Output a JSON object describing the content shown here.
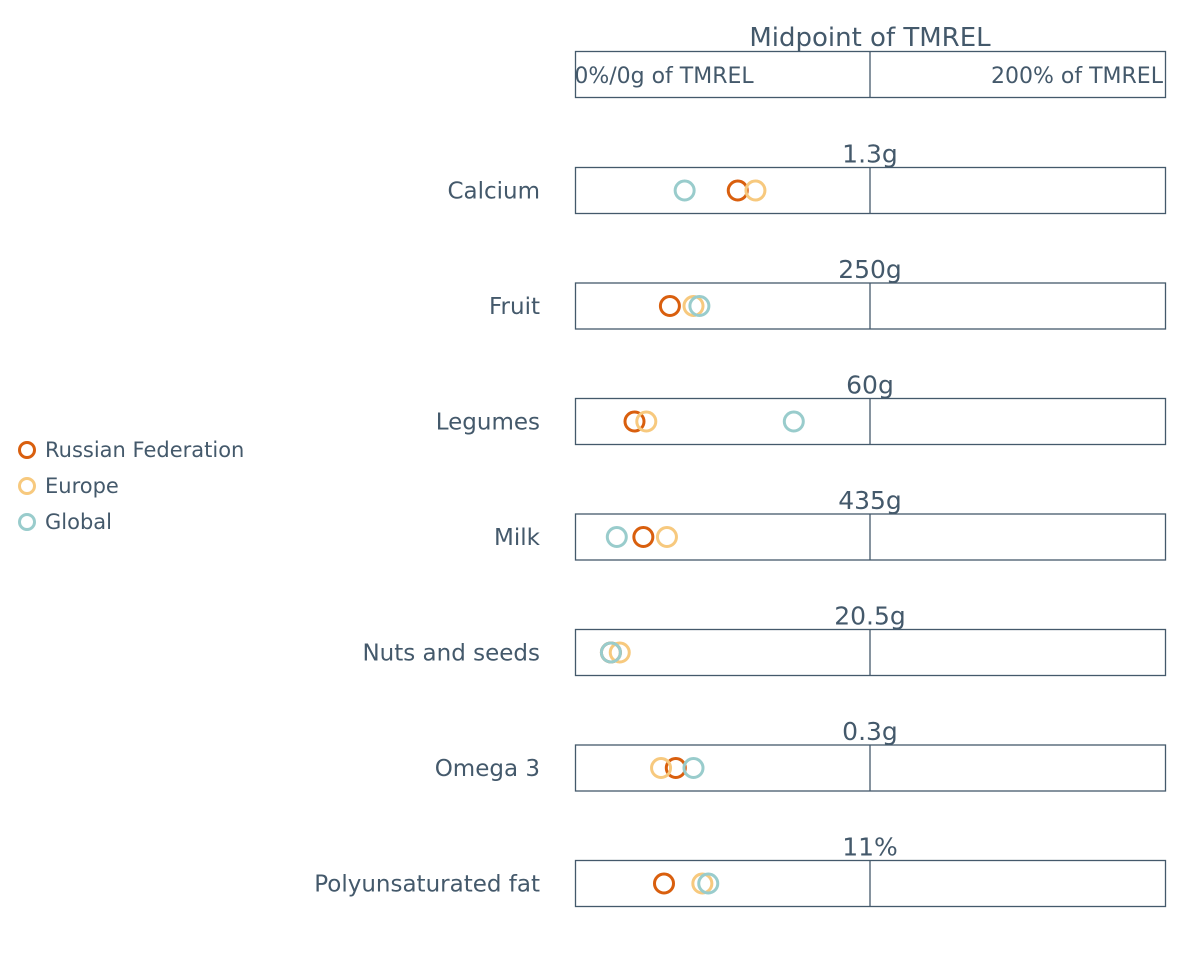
{
  "chart_data": {
    "type": "scatter",
    "title": "Midpoint of TMREL",
    "axis": {
      "left_label": "0%/0g of TMREL",
      "right_label": "200% of TMREL",
      "range_percent_of_tmrel": [
        0,
        200
      ]
    },
    "categories": [
      "Calcium",
      "Fruit",
      "Legumes",
      "Milk",
      "Nuts and seeds",
      "Omega 3",
      "Polyunsaturated fat"
    ],
    "midpoints": [
      "1.3g",
      "250g",
      "60g",
      "435g",
      "20.5g",
      "0.3g",
      "11%"
    ],
    "series": [
      {
        "name": "Russian Federation",
        "color": "#d95f0e",
        "values": [
          55,
          32,
          20,
          23,
          12,
          34,
          30
        ]
      },
      {
        "name": "Europe",
        "color": "#f7c97e",
        "values": [
          61,
          40,
          24,
          31,
          15,
          29,
          43
        ]
      },
      {
        "name": "Global",
        "color": "#99cccc",
        "values": [
          37,
          42,
          74,
          14,
          12,
          40,
          45
        ]
      }
    ]
  }
}
